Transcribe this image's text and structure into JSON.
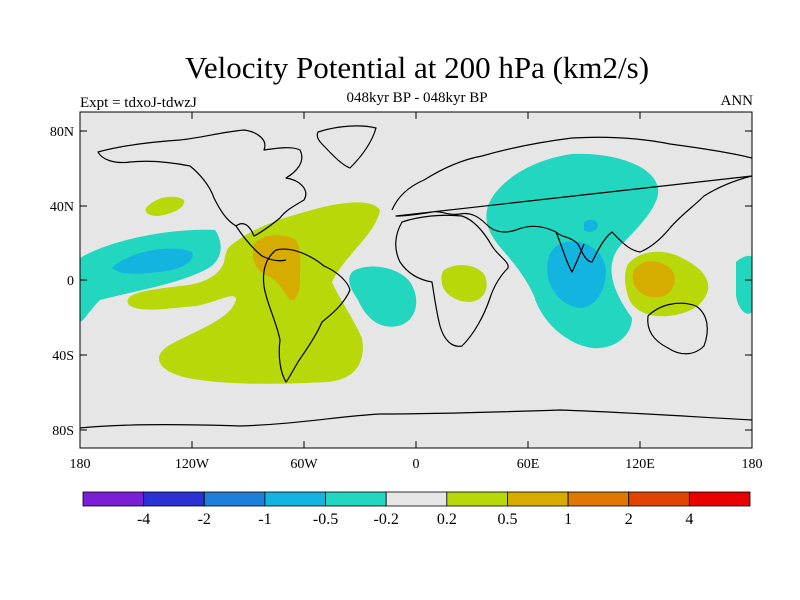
{
  "title": "Velocity Potential at 200 hPa (km2/s)",
  "subtitle_left": "Expt = tdxoJ-tdwzJ",
  "subtitle_center": "048kyr BP - 048kyr BP",
  "subtitle_right": "ANN",
  "x_tick_labels": [
    "180",
    "120W",
    "60W",
    "0",
    "60E",
    "120E",
    "180"
  ],
  "y_tick_labels": [
    "80N",
    "40N",
    "0",
    "40S",
    "80S"
  ],
  "colorbar": {
    "labels": [
      "-4",
      "-2",
      "-1",
      "-0.5",
      "-0.2",
      "0.2",
      "0.5",
      "1",
      "2",
      "4"
    ],
    "colors": [
      "#7a1fd6",
      "#2a32d6",
      "#1e7fd8",
      "#14b4e0",
      "#22d6c0",
      "#e6e6e6",
      "#b8d80a",
      "#d6ac00",
      "#de7800",
      "#e04400",
      "#e80000"
    ]
  },
  "colors": {
    "background": "#e6e6e6",
    "negative_weak": "#22d6c0",
    "negative_mid": "#14b4e0",
    "positive_weak": "#b8d80a",
    "positive_mid": "#d6ac00"
  }
}
